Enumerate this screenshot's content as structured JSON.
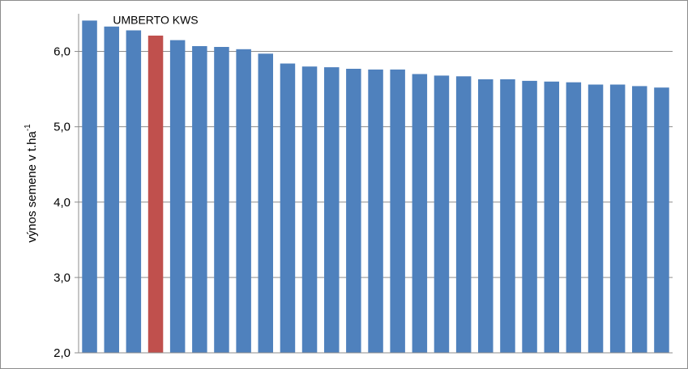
{
  "chart_data": {
    "type": "bar",
    "title": "",
    "xlabel": "",
    "ylabel": "výnos semene v  t.ha",
    "ylabel_superscript": "-1",
    "ylim": [
      2.0,
      6.5
    ],
    "yticks": [
      "2,0",
      "3,0",
      "4,0",
      "5,0",
      "6,0"
    ],
    "ytick_values": [
      2.0,
      3.0,
      4.0,
      5.0,
      6.0
    ],
    "grid": true,
    "legend": "none",
    "colors": {
      "default": "#4f81bd",
      "highlight": "#c0504d",
      "grid": "#8c8c8c"
    },
    "values": [
      6.41,
      6.33,
      6.28,
      6.21,
      6.15,
      6.07,
      6.06,
      6.03,
      5.97,
      5.84,
      5.8,
      5.79,
      5.77,
      5.76,
      5.76,
      5.7,
      5.68,
      5.67,
      5.63,
      5.63,
      5.61,
      5.6,
      5.59,
      5.56,
      5.56,
      5.54,
      5.52
    ],
    "highlight_index": 3,
    "annotation": {
      "text": "UMBERTO KWS",
      "bar_index": 3
    }
  }
}
